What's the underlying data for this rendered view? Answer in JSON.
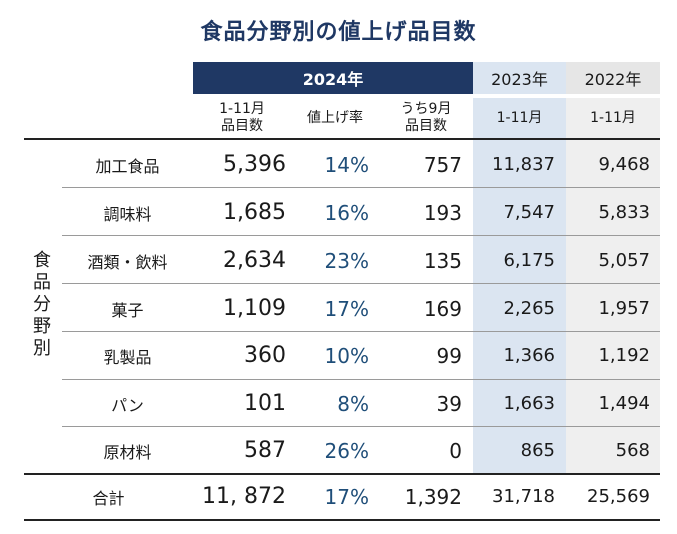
{
  "title": "食品分野別の値上げ品目数",
  "header": {
    "group_2024": "2024年",
    "year_2023": "2023年",
    "year_2022": "2022年"
  },
  "subheader": {
    "items_line1": "1-11月",
    "items_line2": "品目数",
    "rate": "値上げ率",
    "sep_line1": "うち9月",
    "sep_line2": "品目数",
    "y2023": "1-11月",
    "y2022": "1-11月"
  },
  "side_label": [
    "食",
    "品",
    "分",
    "野",
    "別"
  ],
  "rows": [
    {
      "name": "加工食品",
      "items": "5,396",
      "rate": "14%",
      "sep": "757",
      "y2023": "11,837",
      "y2022": "9,468"
    },
    {
      "name": "調味料",
      "items": "1,685",
      "rate": "16%",
      "sep": "193",
      "y2023": "7,547",
      "y2022": "5,833"
    },
    {
      "name": "酒類・飲料",
      "items": "2,634",
      "rate": "23%",
      "sep": "135",
      "y2023": "6,175",
      "y2022": "5,057"
    },
    {
      "name": "菓子",
      "items": "1,109",
      "rate": "17%",
      "sep": "169",
      "y2023": "2,265",
      "y2022": "1,957"
    },
    {
      "name": "乳製品",
      "items": "360",
      "rate": "10%",
      "sep": "99",
      "y2023": "1,366",
      "y2022": "1,192"
    },
    {
      "name": "パン",
      "items": "101",
      "rate": "8%",
      "sep": "39",
      "y2023": "1,663",
      "y2022": "1,494"
    },
    {
      "name": "原材料",
      "items": "587",
      "rate": "26%",
      "sep": "0",
      "y2023": "865",
      "y2022": "568"
    }
  ],
  "total": {
    "name": "合計",
    "items": "11, 872",
    "rate": "17%",
    "sep": "1,392",
    "y2023": "31,718",
    "y2022": "25,569"
  },
  "colors": {
    "navy": "#1f3864",
    "light_blue": "#dbe5f1",
    "light_gray": "#e6e6e6",
    "rate_text": "#1f4e79"
  }
}
